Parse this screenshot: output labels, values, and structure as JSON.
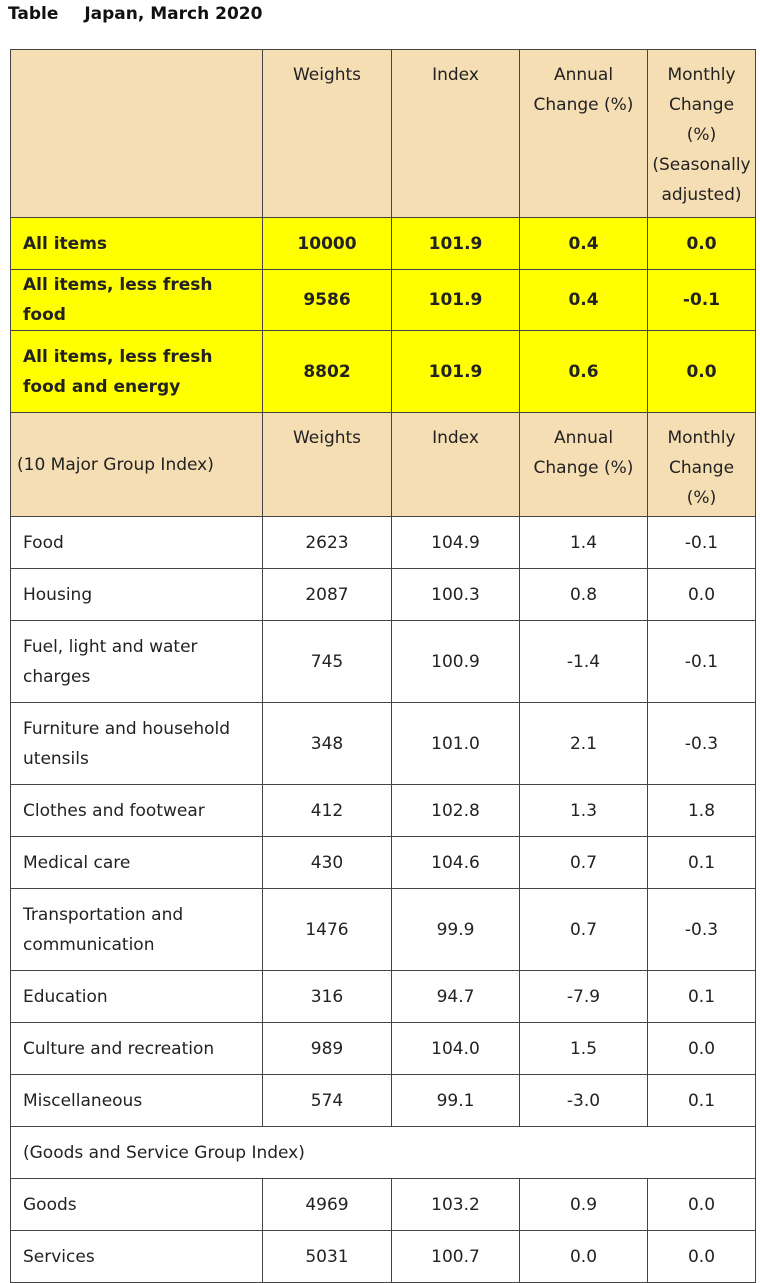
{
  "title": {
    "label": "Table",
    "text": "Japan, March 2020"
  },
  "header": {
    "weights": "Weights",
    "index": "Index",
    "annual": "Annual Change (%)",
    "monthly": "Monthly Change (%) (Seasonally adjusted)"
  },
  "summary_rows": [
    {
      "label": "All items",
      "weights": "10000",
      "index": "101.9",
      "annual": "0.4",
      "monthly": "0.0"
    },
    {
      "label": "All items, less fresh food",
      "weights": "9586",
      "index": "101.9",
      "annual": "0.4",
      "monthly": "-0.1"
    },
    {
      "label": "All items, less fresh food and energy",
      "weights": "8802",
      "index": "101.9",
      "annual": "0.6",
      "monthly": "0.0"
    }
  ],
  "group_header": {
    "label": "(10 Major Group Index)",
    "weights": "Weights",
    "index": "Index",
    "annual": "Annual Change (%)",
    "monthly": "Monthly Change (%)"
  },
  "group_rows": [
    {
      "label": "Food",
      "weights": "2623",
      "index": "104.9",
      "annual": "1.4",
      "monthly": "-0.1"
    },
    {
      "label": "Housing",
      "weights": "2087",
      "index": "100.3",
      "annual": "0.8",
      "monthly": "0.0"
    },
    {
      "label": "Fuel, light and water charges",
      "weights": "745",
      "index": "100.9",
      "annual": "-1.4",
      "monthly": "-0.1"
    },
    {
      "label": "Furniture and household utensils",
      "weights": "348",
      "index": "101.0",
      "annual": "2.1",
      "monthly": "-0.3"
    },
    {
      "label": "Clothes and footwear",
      "weights": "412",
      "index": "102.8",
      "annual": "1.3",
      "monthly": "1.8"
    },
    {
      "label": "Medical care",
      "weights": "430",
      "index": "104.6",
      "annual": "0.7",
      "monthly": "0.1"
    },
    {
      "label": "Transportation and communication",
      "weights": "1476",
      "index": "99.9",
      "annual": "0.7",
      "monthly": "-0.3"
    },
    {
      "label": "Education",
      "weights": "316",
      "index": "94.7",
      "annual": "-7.9",
      "monthly": "0.1"
    },
    {
      "label": "Culture and recreation",
      "weights": "989",
      "index": "104.0",
      "annual": "1.5",
      "monthly": "0.0"
    },
    {
      "label": "Miscellaneous",
      "weights": "574",
      "index": "99.1",
      "annual": "-3.0",
      "monthly": "0.1"
    }
  ],
  "goods_services_header": "(Goods and Service Group Index)",
  "goods_services_rows": [
    {
      "label": "Goods",
      "weights": "4969",
      "index": "103.2",
      "annual": "0.9",
      "monthly": "0.0"
    },
    {
      "label": "Services",
      "weights": "5031",
      "index": "100.7",
      "annual": "0.0",
      "monthly": "0.0"
    }
  ],
  "colors": {
    "header_bg": "#f5deb3",
    "highlight_bg": "#ffff00",
    "border": "#444444"
  }
}
